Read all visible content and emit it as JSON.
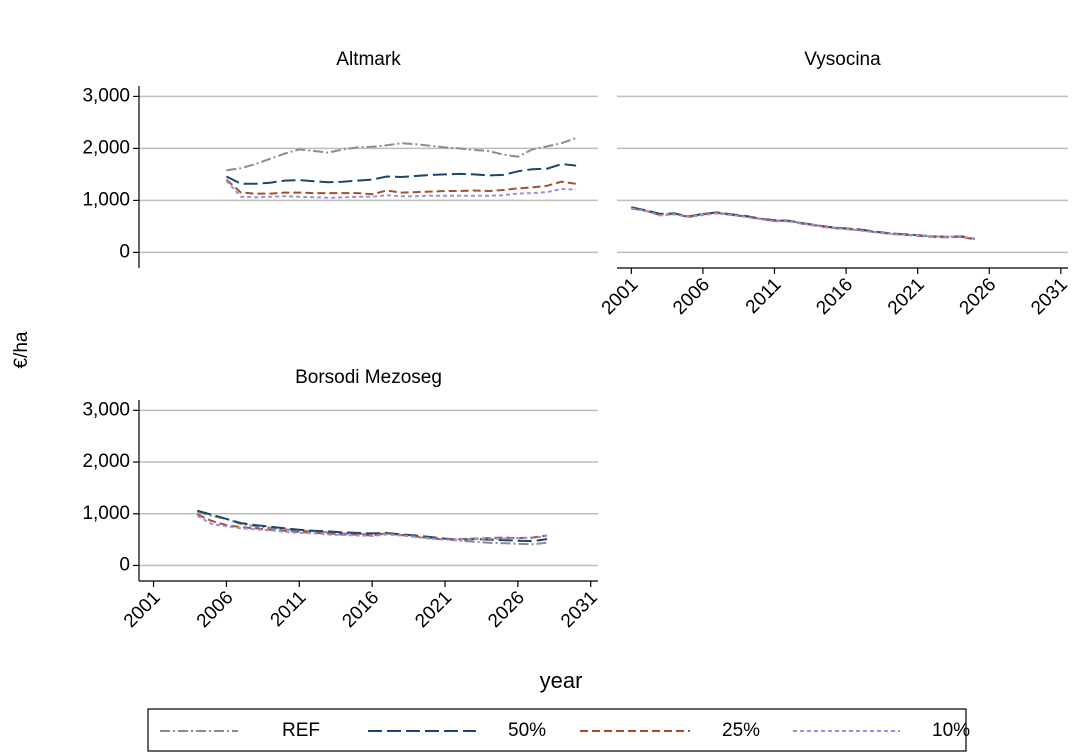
{
  "ylabel": "€/ha",
  "xlabel": "year",
  "chart_data": [
    {
      "type": "line",
      "title": "Altmark",
      "show_xaxis": false,
      "show_yaxis": true,
      "grid": true,
      "xlim": [
        2000,
        2031.5
      ],
      "xticks": [
        2001,
        2006,
        2011,
        2016,
        2021,
        2026,
        2031
      ],
      "ylim": [
        -300,
        3200
      ],
      "yticks": [
        {
          "value": 0,
          "label": "0"
        },
        {
          "value": 1000,
          "label": "1,000"
        },
        {
          "value": 2000,
          "label": "2,000"
        },
        {
          "value": 3000,
          "label": "3,000"
        }
      ],
      "x": [
        2006,
        2007,
        2008,
        2009,
        2010,
        2011,
        2012,
        2013,
        2014,
        2015,
        2016,
        2017,
        2018,
        2019,
        2020,
        2021,
        2022,
        2023,
        2024,
        2025,
        2026,
        2027,
        2028,
        2029,
        2030
      ],
      "series": [
        {
          "name": "REF",
          "color": "#8c8c8c",
          "dash": "10 3 2 3",
          "values": [
            1580,
            1620,
            1700,
            1800,
            1900,
            1980,
            1950,
            1920,
            1980,
            2020,
            2030,
            2060,
            2100,
            2080,
            2050,
            2020,
            2000,
            1970,
            1950,
            1880,
            1840,
            1980,
            2040,
            2100,
            2200
          ]
        },
        {
          "name": "50%",
          "color": "#1a476f",
          "dash": "14 5",
          "values": [
            1460,
            1320,
            1320,
            1340,
            1380,
            1390,
            1370,
            1350,
            1360,
            1380,
            1400,
            1460,
            1450,
            1470,
            1490,
            1500,
            1510,
            1500,
            1480,
            1490,
            1560,
            1600,
            1610,
            1700,
            1670
          ]
        },
        {
          "name": "25%",
          "color": "#a0522d",
          "dash": "8 4",
          "values": [
            1400,
            1150,
            1130,
            1130,
            1150,
            1150,
            1140,
            1140,
            1140,
            1140,
            1120,
            1190,
            1150,
            1160,
            1170,
            1180,
            1180,
            1190,
            1180,
            1200,
            1230,
            1250,
            1280,
            1360,
            1320
          ]
        },
        {
          "name": "10%",
          "color": "#9b8fe0",
          "dash": "4 3",
          "values": [
            1380,
            1070,
            1060,
            1070,
            1080,
            1070,
            1060,
            1050,
            1060,
            1070,
            1070,
            1100,
            1080,
            1080,
            1090,
            1090,
            1090,
            1090,
            1090,
            1100,
            1130,
            1140,
            1160,
            1220,
            1210
          ]
        }
      ]
    },
    {
      "type": "line",
      "title": "Vysocina",
      "show_xaxis": true,
      "show_yaxis": false,
      "grid": true,
      "xlim": [
        2000,
        2031.5
      ],
      "xticks": [
        2001,
        2006,
        2011,
        2016,
        2021,
        2026,
        2031
      ],
      "ylim": [
        -300,
        3200
      ],
      "yticks": [
        {
          "value": 0,
          "label": "0"
        },
        {
          "value": 1000,
          "label": "1,000"
        },
        {
          "value": 2000,
          "label": "2,000"
        },
        {
          "value": 3000,
          "label": "3,000"
        }
      ],
      "x": [
        2001,
        2002,
        2003,
        2004,
        2005,
        2006,
        2007,
        2008,
        2009,
        2010,
        2011,
        2012,
        2013,
        2014,
        2015,
        2016,
        2017,
        2018,
        2019,
        2020,
        2021,
        2022,
        2023,
        2024,
        2025
      ],
      "series": [
        {
          "name": "REF",
          "color": "#8c8c8c",
          "dash": "10 3 2 3",
          "values": [
            860,
            810,
            730,
            740,
            690,
            740,
            760,
            730,
            690,
            650,
            610,
            610,
            560,
            520,
            480,
            460,
            430,
            400,
            370,
            350,
            330,
            310,
            300,
            300,
            260
          ]
        },
        {
          "name": "50%",
          "color": "#1a476f",
          "dash": "14 5",
          "values": [
            870,
            810,
            740,
            750,
            690,
            740,
            770,
            730,
            700,
            650,
            620,
            610,
            560,
            520,
            480,
            460,
            440,
            400,
            370,
            350,
            330,
            310,
            300,
            310,
            260
          ]
        },
        {
          "name": "25%",
          "color": "#a0522d",
          "dash": "8 4",
          "values": [
            850,
            800,
            720,
            740,
            680,
            730,
            760,
            720,
            690,
            640,
            610,
            600,
            550,
            510,
            470,
            450,
            430,
            390,
            360,
            340,
            320,
            300,
            290,
            300,
            250
          ]
        },
        {
          "name": "10%",
          "color": "#9b8fe0",
          "dash": "4 3",
          "values": [
            840,
            800,
            710,
            730,
            680,
            720,
            750,
            720,
            680,
            640,
            600,
            600,
            550,
            510,
            470,
            450,
            420,
            390,
            360,
            340,
            330,
            310,
            300,
            310,
            260
          ]
        }
      ]
    },
    {
      "type": "line",
      "title": "Borsodi Mezoseg",
      "show_xaxis": true,
      "show_yaxis": true,
      "grid": true,
      "xlim": [
        2000,
        2031.5
      ],
      "xticks": [
        2001,
        2006,
        2011,
        2016,
        2021,
        2026,
        2031
      ],
      "ylim": [
        -300,
        3200
      ],
      "yticks": [
        {
          "value": 0,
          "label": "0"
        },
        {
          "value": 1000,
          "label": "1,000"
        },
        {
          "value": 2000,
          "label": "2,000"
        },
        {
          "value": 3000,
          "label": "3,000"
        }
      ],
      "x": [
        2004,
        2005,
        2006,
        2007,
        2008,
        2009,
        2010,
        2011,
        2012,
        2013,
        2014,
        2015,
        2016,
        2017,
        2018,
        2019,
        2020,
        2021,
        2022,
        2023,
        2024,
        2025,
        2026,
        2027,
        2028
      ],
      "series": [
        {
          "name": "REF",
          "color": "#8c8c8c",
          "dash": "10 3 2 3",
          "values": [
            1040,
            960,
            900,
            800,
            760,
            730,
            700,
            680,
            660,
            640,
            620,
            610,
            600,
            620,
            590,
            560,
            530,
            510,
            480,
            460,
            440,
            430,
            420,
            410,
            440
          ]
        },
        {
          "name": "50%",
          "color": "#1a476f",
          "dash": "14 5",
          "values": [
            1060,
            980,
            900,
            820,
            780,
            750,
            720,
            690,
            670,
            660,
            640,
            630,
            620,
            630,
            600,
            580,
            550,
            520,
            500,
            510,
            500,
            490,
            480,
            470,
            510
          ]
        },
        {
          "name": "25%",
          "color": "#a0522d",
          "dash": "8 4",
          "values": [
            990,
            860,
            780,
            740,
            720,
            690,
            670,
            650,
            630,
            620,
            600,
            600,
            580,
            620,
            590,
            560,
            530,
            500,
            510,
            520,
            530,
            540,
            530,
            540,
            580
          ]
        },
        {
          "name": "10%",
          "color": "#9b8fe0",
          "dash": "4 3",
          "values": [
            960,
            800,
            760,
            720,
            700,
            680,
            650,
            630,
            620,
            600,
            590,
            580,
            570,
            600,
            580,
            550,
            520,
            500,
            500,
            510,
            520,
            520,
            530,
            530,
            570
          ]
        }
      ]
    }
  ]
}
